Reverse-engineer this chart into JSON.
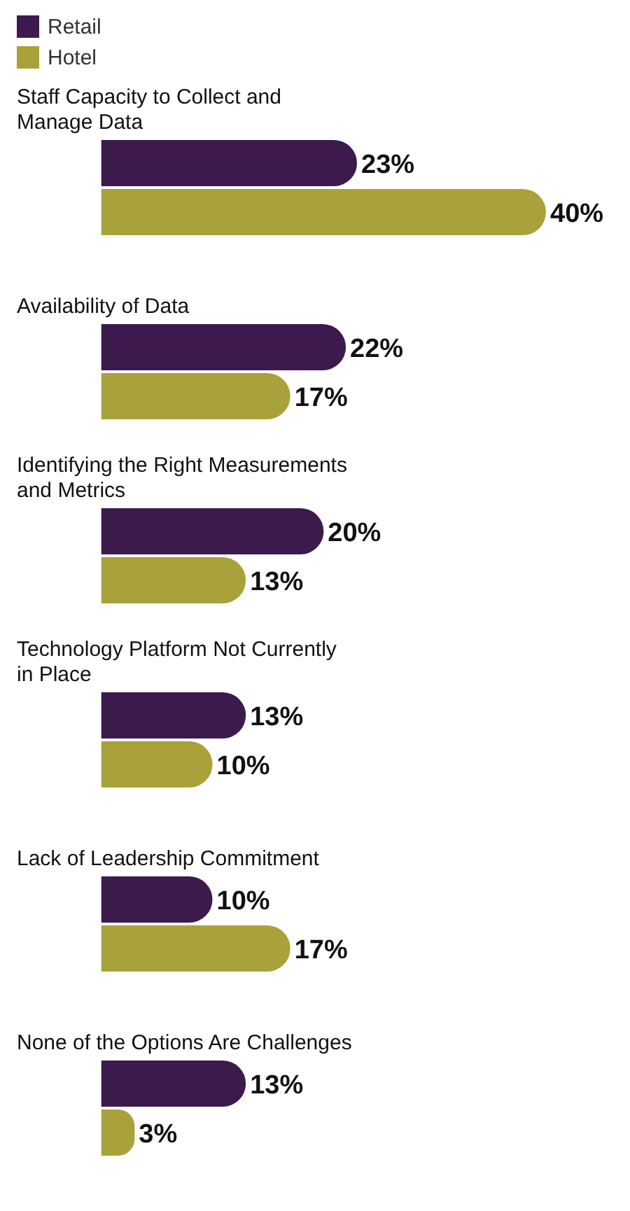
{
  "chart_data": {
    "type": "bar",
    "orientation": "horizontal",
    "legend": "top left",
    "categories": [
      "Staff Capacity to Collect and Manage Data",
      "Availability of Data",
      "Identifying the Right Measurements and Metrics",
      "Technology Platform Not Currently in Place",
      "Lack of Leadership Commitment",
      "None of the Options Are Challenges"
    ],
    "series": [
      {
        "name": "Retail",
        "color": "#3c1a4e",
        "values": [
          23,
          22,
          20,
          13,
          10,
          13
        ],
        "value_labels": [
          "23%",
          "22%",
          "20%",
          "13%",
          "10%",
          "13%"
        ]
      },
      {
        "name": "Hotel",
        "color": "#a9a23a",
        "values": [
          40,
          17,
          13,
          10,
          17,
          3
        ],
        "value_labels": [
          "40%",
          "17%",
          "13%",
          "10%",
          "17%",
          "3%"
        ]
      }
    ]
  }
}
